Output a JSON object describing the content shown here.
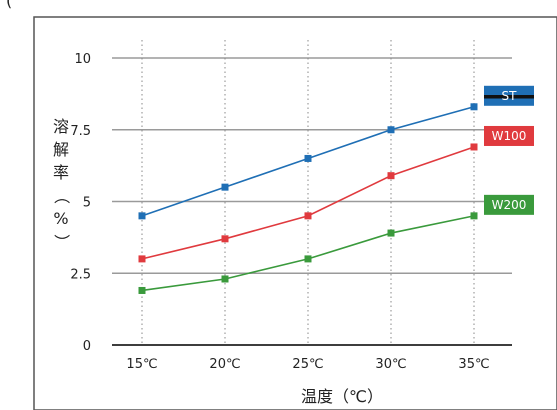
{
  "header_fragment": "(",
  "chart_data": {
    "type": "line",
    "x": [
      "15℃",
      "20℃",
      "25℃",
      "30℃",
      "35℃"
    ],
    "xlabel": "温度（℃）",
    "ylabel": "溶解率（%）",
    "ylim": [
      0,
      10
    ],
    "yticks": [
      0,
      2.5,
      5,
      7.5,
      10
    ],
    "ytick_labels": [
      "0",
      "2.5",
      "5",
      "7.5",
      "10"
    ],
    "grid": true,
    "legend_placement": "right, inline at line ends",
    "series": [
      {
        "name": "ST",
        "color": "#1f6fb5",
        "values": [
          4.5,
          5.5,
          6.5,
          7.5,
          8.3
        ]
      },
      {
        "name": "W100",
        "color": "#e03a3e",
        "values": [
          3.0,
          3.7,
          4.5,
          5.9,
          6.9
        ]
      },
      {
        "name": "W200",
        "color": "#3a9a3c",
        "values": [
          1.9,
          2.3,
          3.0,
          3.9,
          4.5
        ]
      }
    ]
  }
}
